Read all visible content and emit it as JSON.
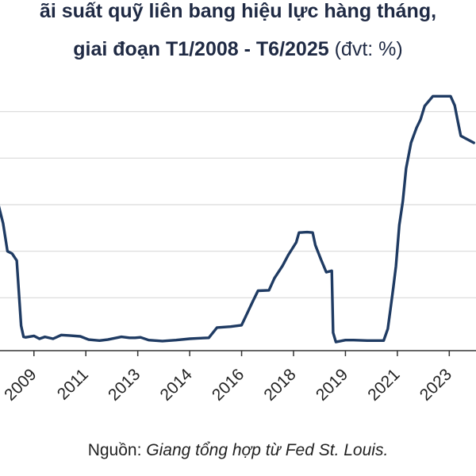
{
  "title": {
    "line1": "ãi suất quỹ liên bang hiệu lực hàng tháng,",
    "line2_main": "giai đoạn T1/2008 - T6/2025",
    "line2_unit": "(đvt: %)"
  },
  "source": {
    "label": "Nguồn:",
    "detail": "Giang tổng hợp từ Fed St. Louis."
  },
  "colors": {
    "line": "#1f3b63",
    "grid": "#d9d9d9",
    "axis": "#333333"
  },
  "chart_data": {
    "type": "line",
    "title": "",
    "xlabel": "",
    "ylabel": "",
    "ylim": [
      0,
      6
    ],
    "gridlines_y": [
      0,
      1,
      2,
      3,
      4,
      5
    ],
    "grid": true,
    "xlim": [
      2008.0,
      2025.42
    ],
    "x_ticks": [
      {
        "label": "2009",
        "value": 2009.3
      },
      {
        "label": "2011",
        "value": 2011.2
      },
      {
        "label": "2013",
        "value": 2013.1
      },
      {
        "label": "2014",
        "value": 2015.0
      },
      {
        "label": "2016",
        "value": 2016.9
      },
      {
        "label": "2018",
        "value": 2018.8
      },
      {
        "label": "2019",
        "value": 2020.7
      },
      {
        "label": "2021",
        "value": 2022.6
      },
      {
        "label": "2023",
        "value": 2024.5
      }
    ],
    "series": [
      {
        "points": [
          [
            2008.0,
            3.0
          ],
          [
            2008.17,
            2.6
          ],
          [
            2008.33,
            2.0
          ],
          [
            2008.5,
            1.95
          ],
          [
            2008.67,
            1.8
          ],
          [
            2008.83,
            0.4
          ],
          [
            2008.92,
            0.16
          ],
          [
            2009.0,
            0.15
          ],
          [
            2009.3,
            0.18
          ],
          [
            2009.5,
            0.12
          ],
          [
            2009.7,
            0.16
          ],
          [
            2010.0,
            0.12
          ],
          [
            2010.3,
            0.2
          ],
          [
            2010.6,
            0.19
          ],
          [
            2011.0,
            0.17
          ],
          [
            2011.3,
            0.1
          ],
          [
            2011.7,
            0.08
          ],
          [
            2012.0,
            0.1
          ],
          [
            2012.5,
            0.16
          ],
          [
            2012.8,
            0.14
          ],
          [
            2013.0,
            0.14
          ],
          [
            2013.2,
            0.15
          ],
          [
            2013.5,
            0.09
          ],
          [
            2014.0,
            0.07
          ],
          [
            2014.5,
            0.09
          ],
          [
            2015.0,
            0.12
          ],
          [
            2015.3,
            0.13
          ],
          [
            2015.7,
            0.14
          ],
          [
            2016.0,
            0.36
          ],
          [
            2016.5,
            0.38
          ],
          [
            2016.9,
            0.41
          ],
          [
            2017.1,
            0.66
          ],
          [
            2017.3,
            0.91
          ],
          [
            2017.5,
            1.15
          ],
          [
            2017.9,
            1.16
          ],
          [
            2018.1,
            1.42
          ],
          [
            2018.4,
            1.69
          ],
          [
            2018.6,
            1.91
          ],
          [
            2018.9,
            2.19
          ],
          [
            2019.0,
            2.4
          ],
          [
            2019.3,
            2.41
          ],
          [
            2019.5,
            2.4
          ],
          [
            2019.6,
            2.13
          ],
          [
            2019.8,
            1.83
          ],
          [
            2020.0,
            1.55
          ],
          [
            2020.2,
            1.58
          ],
          [
            2020.25,
            0.25
          ],
          [
            2020.35,
            0.05
          ],
          [
            2020.7,
            0.09
          ],
          [
            2021.0,
            0.09
          ],
          [
            2021.5,
            0.08
          ],
          [
            2021.9,
            0.08
          ],
          [
            2022.1,
            0.08
          ],
          [
            2022.25,
            0.33
          ],
          [
            2022.35,
            0.77
          ],
          [
            2022.45,
            1.21
          ],
          [
            2022.55,
            1.68
          ],
          [
            2022.67,
            2.56
          ],
          [
            2022.8,
            3.08
          ],
          [
            2022.92,
            3.78
          ],
          [
            2023.1,
            4.33
          ],
          [
            2023.3,
            4.65
          ],
          [
            2023.45,
            4.83
          ],
          [
            2023.6,
            5.12
          ],
          [
            2023.9,
            5.33
          ],
          [
            2024.2,
            5.33
          ],
          [
            2024.55,
            5.33
          ],
          [
            2024.7,
            5.13
          ],
          [
            2024.8,
            4.83
          ],
          [
            2024.92,
            4.48
          ],
          [
            2025.4,
            4.33
          ]
        ]
      }
    ]
  }
}
